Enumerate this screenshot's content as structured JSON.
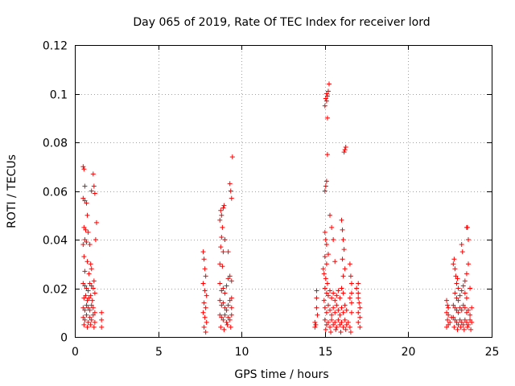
{
  "chart_data": {
    "type": "scatter",
    "title": "Day 065 of 2019, Rate Of TEC Index for receiver lord",
    "xlabel": "GPS time / hours",
    "ylabel": "ROTI / TECUs",
    "xlim": [
      0,
      25
    ],
    "ylim": [
      0,
      0.12
    ],
    "x_ticks": [
      "0",
      "5",
      "10",
      "15",
      "20",
      "25"
    ],
    "y_ticks": [
      "0",
      "0.02",
      "0.04",
      "0.06",
      "0.08",
      "0.1",
      "0.12"
    ],
    "grid": true,
    "marker": "plus",
    "color": "#ff0000",
    "series": [
      {
        "points": [
          [
            0.5,
            0.07
          ],
          [
            0.55,
            0.069
          ],
          [
            0.6,
            0.062
          ],
          [
            0.5,
            0.057
          ],
          [
            0.6,
            0.056
          ],
          [
            0.7,
            0.055
          ],
          [
            0.75,
            0.05
          ],
          [
            0.55,
            0.045
          ],
          [
            0.65,
            0.044
          ],
          [
            0.8,
            0.043
          ],
          [
            0.5,
            0.038
          ],
          [
            0.6,
            0.04
          ],
          [
            0.7,
            0.039
          ],
          [
            0.9,
            0.038
          ],
          [
            0.55,
            0.033
          ],
          [
            0.75,
            0.031
          ],
          [
            0.95,
            0.03
          ],
          [
            0.6,
            0.027
          ],
          [
            0.85,
            0.026
          ],
          [
            1.0,
            0.028
          ],
          [
            0.5,
            0.022
          ],
          [
            0.6,
            0.021
          ],
          [
            0.7,
            0.02
          ],
          [
            0.8,
            0.019
          ],
          [
            0.9,
            0.022
          ],
          [
            1.0,
            0.021
          ],
          [
            1.1,
            0.02
          ],
          [
            1.15,
            0.023
          ],
          [
            0.55,
            0.016
          ],
          [
            0.65,
            0.017
          ],
          [
            0.75,
            0.015
          ],
          [
            0.85,
            0.016
          ],
          [
            0.95,
            0.017
          ],
          [
            1.05,
            0.015
          ],
          [
            1.2,
            0.018
          ],
          [
            0.5,
            0.012
          ],
          [
            0.6,
            0.011
          ],
          [
            0.7,
            0.013
          ],
          [
            0.8,
            0.012
          ],
          [
            0.9,
            0.011
          ],
          [
            1.0,
            0.013
          ],
          [
            1.1,
            0.012
          ],
          [
            1.2,
            0.01
          ],
          [
            0.5,
            0.008
          ],
          [
            0.6,
            0.007
          ],
          [
            0.7,
            0.009
          ],
          [
            0.8,
            0.006
          ],
          [
            0.9,
            0.008
          ],
          [
            1.0,
            0.007
          ],
          [
            1.1,
            0.009
          ],
          [
            1.2,
            0.006
          ],
          [
            0.55,
            0.005
          ],
          [
            0.75,
            0.004
          ],
          [
            0.95,
            0.005
          ],
          [
            1.15,
            0.004
          ],
          [
            1.1,
            0.067
          ],
          [
            1.15,
            0.062
          ],
          [
            1.2,
            0.059
          ],
          [
            1.3,
            0.047
          ],
          [
            1.6,
            0.01
          ],
          [
            1.6,
            0.007
          ],
          [
            1.6,
            0.004
          ],
          [
            1.0,
            0.06
          ],
          [
            1.25,
            0.04
          ],
          [
            7.7,
            0.035
          ],
          [
            7.75,
            0.032
          ],
          [
            7.8,
            0.028
          ],
          [
            7.85,
            0.025
          ],
          [
            7.7,
            0.022
          ],
          [
            7.8,
            0.019
          ],
          [
            7.9,
            0.017
          ],
          [
            7.75,
            0.014
          ],
          [
            7.85,
            0.012
          ],
          [
            7.7,
            0.01
          ],
          [
            7.8,
            0.008
          ],
          [
            7.9,
            0.006
          ],
          [
            7.75,
            0.004
          ],
          [
            7.85,
            0.002
          ],
          [
            8.7,
            0.048
          ],
          [
            8.75,
            0.052
          ],
          [
            8.8,
            0.05
          ],
          [
            8.85,
            0.045
          ],
          [
            8.9,
            0.053
          ],
          [
            8.95,
            0.054
          ],
          [
            8.8,
            0.041
          ],
          [
            8.75,
            0.037
          ],
          [
            8.9,
            0.035
          ],
          [
            8.7,
            0.03
          ],
          [
            8.85,
            0.029
          ],
          [
            9.0,
            0.04
          ],
          [
            8.7,
            0.022
          ],
          [
            8.8,
            0.019
          ],
          [
            8.9,
            0.02
          ],
          [
            9.0,
            0.018
          ],
          [
            9.1,
            0.021
          ],
          [
            9.2,
            0.024
          ],
          [
            9.3,
            0.025
          ],
          [
            9.4,
            0.023
          ],
          [
            8.7,
            0.015
          ],
          [
            8.8,
            0.013
          ],
          [
            8.9,
            0.014
          ],
          [
            9.0,
            0.012
          ],
          [
            9.1,
            0.011
          ],
          [
            9.2,
            0.013
          ],
          [
            9.3,
            0.015
          ],
          [
            9.4,
            0.012
          ],
          [
            8.7,
            0.009
          ],
          [
            8.8,
            0.008
          ],
          [
            8.9,
            0.007
          ],
          [
            9.0,
            0.009
          ],
          [
            9.1,
            0.006
          ],
          [
            9.2,
            0.008
          ],
          [
            9.3,
            0.007
          ],
          [
            9.4,
            0.009
          ],
          [
            8.75,
            0.004
          ],
          [
            8.95,
            0.003
          ],
          [
            9.15,
            0.005
          ],
          [
            9.35,
            0.004
          ],
          [
            9.3,
            0.063
          ],
          [
            9.35,
            0.06
          ],
          [
            9.4,
            0.057
          ],
          [
            9.45,
            0.074
          ],
          [
            9.2,
            0.035
          ],
          [
            9.4,
            0.016
          ],
          [
            14.4,
            0.006
          ],
          [
            14.45,
            0.005
          ],
          [
            14.4,
            0.004
          ],
          [
            14.5,
            0.016
          ],
          [
            14.5,
            0.019
          ],
          [
            14.5,
            0.012
          ],
          [
            14.55,
            0.009
          ],
          [
            15.0,
            0.043
          ],
          [
            15.05,
            0.04
          ],
          [
            15.1,
            0.038
          ],
          [
            15.0,
            0.033
          ],
          [
            15.1,
            0.03
          ],
          [
            14.95,
            0.026
          ],
          [
            15.05,
            0.024
          ],
          [
            15.15,
            0.022
          ],
          [
            15.0,
            0.06
          ],
          [
            15.05,
            0.062
          ],
          [
            15.1,
            0.064
          ],
          [
            15.15,
            0.075
          ],
          [
            15.0,
            0.095
          ],
          [
            15.05,
            0.098
          ],
          [
            15.1,
            0.1
          ],
          [
            15.15,
            0.099
          ],
          [
            15.2,
            0.101
          ],
          [
            15.25,
            0.104
          ],
          [
            15.15,
            0.09
          ],
          [
            15.1,
            0.097
          ],
          [
            15.3,
            0.05
          ],
          [
            15.4,
            0.045
          ],
          [
            15.5,
            0.04
          ],
          [
            15.2,
            0.034
          ],
          [
            15.6,
            0.031
          ],
          [
            15.0,
            0.02
          ],
          [
            15.1,
            0.018
          ],
          [
            15.2,
            0.017
          ],
          [
            15.3,
            0.019
          ],
          [
            15.4,
            0.016
          ],
          [
            15.5,
            0.018
          ],
          [
            15.6,
            0.015
          ],
          [
            15.7,
            0.017
          ],
          [
            15.8,
            0.019
          ],
          [
            15.9,
            0.016
          ],
          [
            16.0,
            0.02
          ],
          [
            16.1,
            0.018
          ],
          [
            15.0,
            0.012
          ],
          [
            15.1,
            0.01
          ],
          [
            15.2,
            0.013
          ],
          [
            15.3,
            0.011
          ],
          [
            15.4,
            0.009
          ],
          [
            15.5,
            0.012
          ],
          [
            15.6,
            0.01
          ],
          [
            15.7,
            0.013
          ],
          [
            15.8,
            0.011
          ],
          [
            15.9,
            0.009
          ],
          [
            16.0,
            0.012
          ],
          [
            16.1,
            0.01
          ],
          [
            16.2,
            0.013
          ],
          [
            16.3,
            0.011
          ],
          [
            15.0,
            0.007
          ],
          [
            15.1,
            0.005
          ],
          [
            15.2,
            0.006
          ],
          [
            15.3,
            0.004
          ],
          [
            15.4,
            0.007
          ],
          [
            15.5,
            0.005
          ],
          [
            15.6,
            0.006
          ],
          [
            15.7,
            0.004
          ],
          [
            15.8,
            0.007
          ],
          [
            15.9,
            0.005
          ],
          [
            16.0,
            0.006
          ],
          [
            16.1,
            0.004
          ],
          [
            16.2,
            0.007
          ],
          [
            16.3,
            0.005
          ],
          [
            16.4,
            0.006
          ],
          [
            16.5,
            0.004
          ],
          [
            15.05,
            0.003
          ],
          [
            15.35,
            0.002
          ],
          [
            15.65,
            0.003
          ],
          [
            15.95,
            0.002
          ],
          [
            16.25,
            0.003
          ],
          [
            16.55,
            0.002
          ],
          [
            16.0,
            0.048
          ],
          [
            16.05,
            0.044
          ],
          [
            16.1,
            0.04
          ],
          [
            16.15,
            0.036
          ],
          [
            16.05,
            0.032
          ],
          [
            16.2,
            0.028
          ],
          [
            16.1,
            0.025
          ],
          [
            16.2,
            0.077
          ],
          [
            16.25,
            0.078
          ],
          [
            16.15,
            0.076
          ],
          [
            16.5,
            0.03
          ],
          [
            16.55,
            0.025
          ],
          [
            16.6,
            0.022
          ],
          [
            16.6,
            0.018
          ],
          [
            16.6,
            0.014
          ],
          [
            16.6,
            0.01
          ],
          [
            16.5,
            0.016
          ],
          [
            17.0,
            0.018
          ],
          [
            17.0,
            0.016
          ],
          [
            17.05,
            0.014
          ],
          [
            17.1,
            0.012
          ],
          [
            17.0,
            0.01
          ],
          [
            17.1,
            0.008
          ],
          [
            17.0,
            0.006
          ],
          [
            17.1,
            0.004
          ],
          [
            16.9,
            0.02
          ],
          [
            17.0,
            0.022
          ],
          [
            14.9,
            0.028
          ],
          [
            14.95,
            0.015
          ],
          [
            22.3,
            0.015
          ],
          [
            22.35,
            0.013
          ],
          [
            22.4,
            0.012
          ],
          [
            22.3,
            0.01
          ],
          [
            22.4,
            0.009
          ],
          [
            22.35,
            0.007
          ],
          [
            22.4,
            0.005
          ],
          [
            22.3,
            0.004
          ],
          [
            22.5,
            0.006
          ],
          [
            22.6,
            0.008
          ],
          [
            22.7,
            0.03
          ],
          [
            22.75,
            0.032
          ],
          [
            22.8,
            0.028
          ],
          [
            22.85,
            0.025
          ],
          [
            22.9,
            0.022
          ],
          [
            22.95,
            0.024
          ],
          [
            23.0,
            0.02
          ],
          [
            22.8,
            0.018
          ],
          [
            22.9,
            0.016
          ],
          [
            23.0,
            0.015
          ],
          [
            23.1,
            0.017
          ],
          [
            23.2,
            0.019
          ],
          [
            23.3,
            0.021
          ],
          [
            23.4,
            0.018
          ],
          [
            23.5,
            0.016
          ],
          [
            22.7,
            0.013
          ],
          [
            22.8,
            0.012
          ],
          [
            22.9,
            0.011
          ],
          [
            23.0,
            0.01
          ],
          [
            23.1,
            0.012
          ],
          [
            23.2,
            0.011
          ],
          [
            23.3,
            0.013
          ],
          [
            23.4,
            0.012
          ],
          [
            23.5,
            0.01
          ],
          [
            23.6,
            0.011
          ],
          [
            23.7,
            0.009
          ],
          [
            23.8,
            0.012
          ],
          [
            22.7,
            0.008
          ],
          [
            22.8,
            0.007
          ],
          [
            22.9,
            0.006
          ],
          [
            23.0,
            0.005
          ],
          [
            23.1,
            0.007
          ],
          [
            23.2,
            0.006
          ],
          [
            23.3,
            0.005
          ],
          [
            23.4,
            0.007
          ],
          [
            23.5,
            0.006
          ],
          [
            23.6,
            0.005
          ],
          [
            23.7,
            0.007
          ],
          [
            23.8,
            0.006
          ],
          [
            22.75,
            0.004
          ],
          [
            22.95,
            0.003
          ],
          [
            23.15,
            0.004
          ],
          [
            23.35,
            0.003
          ],
          [
            23.55,
            0.004
          ],
          [
            23.75,
            0.003
          ],
          [
            23.2,
            0.038
          ],
          [
            23.25,
            0.035
          ],
          [
            23.5,
            0.045
          ],
          [
            23.55,
            0.045
          ],
          [
            23.6,
            0.04
          ],
          [
            23.6,
            0.03
          ],
          [
            23.5,
            0.026
          ],
          [
            23.4,
            0.023
          ],
          [
            23.7,
            0.02
          ]
        ]
      }
    ]
  }
}
